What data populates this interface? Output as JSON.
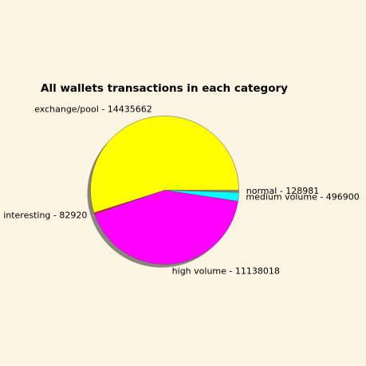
{
  "chart_data": {
    "type": "pie",
    "title": "All wallets transactions in each category",
    "slices": [
      {
        "label": "normal",
        "value": 128981,
        "color": "#808080"
      },
      {
        "label": "medium volume",
        "value": 496900,
        "color": "#00ffff"
      },
      {
        "label": "high volume",
        "value": 11138018,
        "color": "#ff00ff"
      },
      {
        "label": "interesting",
        "value": 82920,
        "color": "#ff0000"
      },
      {
        "label": "exchange/pool",
        "value": 14435662,
        "color": "#ffff00"
      }
    ],
    "start_angle_deg": 0,
    "direction": "clockwise",
    "shadow": true
  }
}
